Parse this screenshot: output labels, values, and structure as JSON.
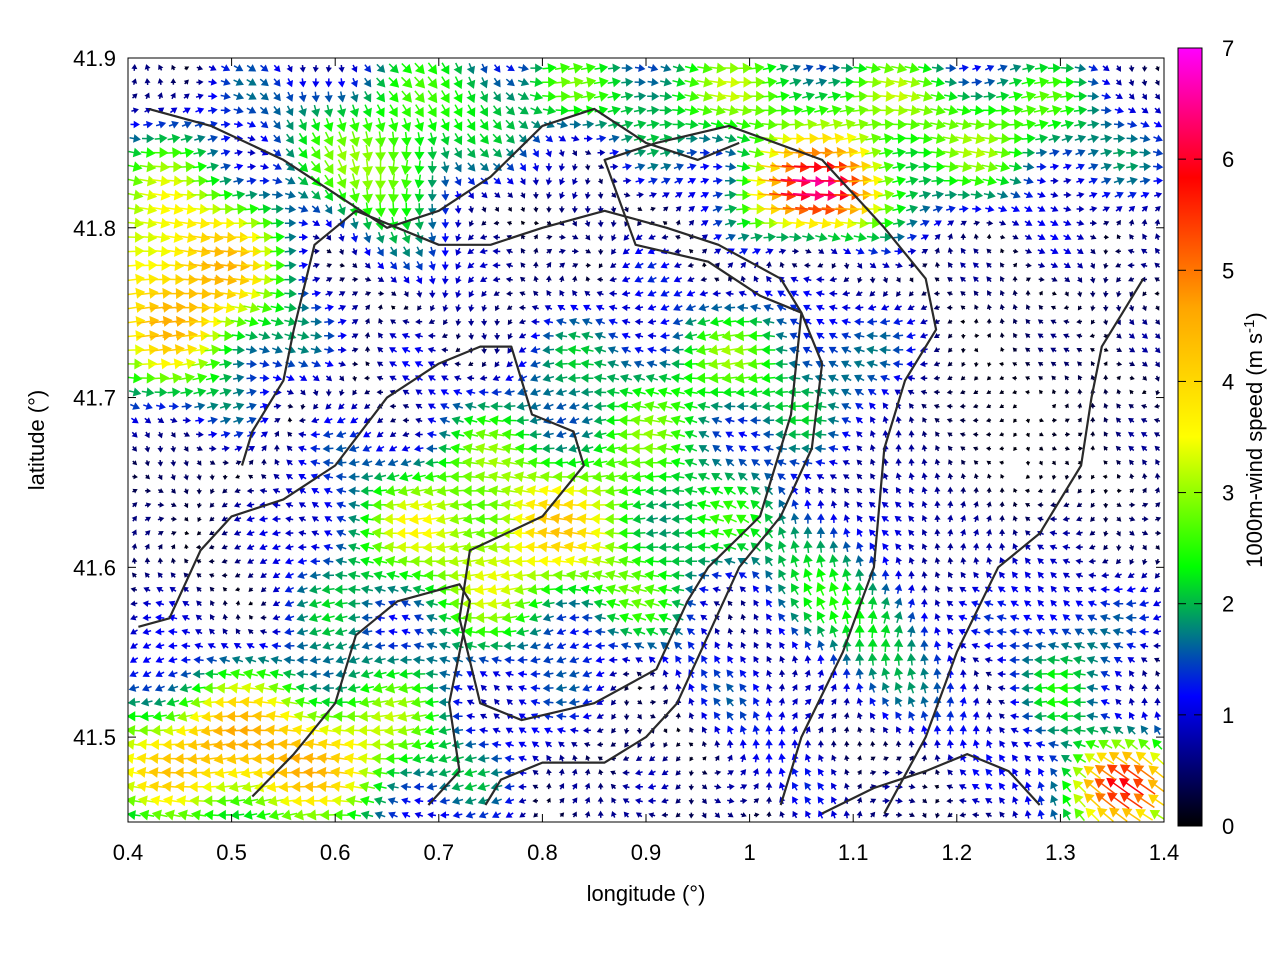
{
  "chart_data": {
    "type": "quiver",
    "title": "",
    "xlabel": "longitude (°)",
    "ylabel": "latitude (°)",
    "xlim": [
      0.4,
      1.4
    ],
    "ylim": [
      41.45,
      41.9
    ],
    "xticks": [
      "0.4",
      "0.5",
      "0.6",
      "0.7",
      "0.8",
      "0.9",
      "1",
      "1.1",
      "1.2",
      "1.3",
      "1.4"
    ],
    "yticks": [
      "41.5",
      "41.6",
      "41.7",
      "41.8",
      "41.9"
    ],
    "colorbar": {
      "label": "1000m-wind speed (m s⁻¹)",
      "label_main": "1000m-wind speed (m s",
      "label_sup": "-1",
      "label_close": ")",
      "range": [
        0,
        7
      ],
      "ticks": [
        "0",
        "1",
        "2",
        "3",
        "4",
        "5",
        "6",
        "7"
      ],
      "stops": [
        "#000000",
        "#0000ff",
        "#00ff00",
        "#ffff00",
        "#ffa500",
        "#ff0000",
        "#ff00ff"
      ]
    },
    "vector_field": {
      "x_spacing_deg": 0.0125,
      "y_spacing_deg": 0.0083,
      "regions": [
        {
          "area": "west (0.40–0.55, 41.72–41.85)",
          "direction": "east",
          "speed": 4.5
        },
        {
          "area": "northwest strip (0.58–0.75, 41.80–41.90)",
          "direction": "south-east",
          "speed": 3.8
        },
        {
          "area": "north (1.00–1.10, 41.80–41.84)",
          "direction": "east",
          "speed": 5.5
        },
        {
          "area": "central band (0.65–0.95, 41.55–41.68)",
          "direction": "west",
          "speed": 3.5
        },
        {
          "area": "south-west (0.40–0.70, 41.46–41.52)",
          "direction": "west",
          "speed": 4.5
        },
        {
          "area": "east calm (1.15–1.35, 41.60–41.75)",
          "direction": "variable",
          "speed": 0.6
        },
        {
          "area": "south-east corner (1.30–1.40, 41.45–41.50)",
          "direction": "north-west",
          "speed": 6.5
        }
      ]
    },
    "contours": [
      [
        [
          0.52,
          41.465
        ],
        [
          0.56,
          41.49
        ],
        [
          0.6,
          41.52
        ],
        [
          0.62,
          41.56
        ],
        [
          0.66,
          41.58
        ],
        [
          0.72,
          41.59
        ],
        [
          0.73,
          41.58
        ],
        [
          0.71,
          41.52
        ],
        [
          0.72,
          41.48
        ],
        [
          0.69,
          41.46
        ]
      ],
      [
        [
          0.41,
          41.565
        ],
        [
          0.44,
          41.57
        ],
        [
          0.47,
          41.61
        ],
        [
          0.5,
          41.63
        ],
        [
          0.55,
          41.64
        ],
        [
          0.6,
          41.66
        ],
        [
          0.65,
          41.7
        ],
        [
          0.7,
          41.72
        ],
        [
          0.74,
          41.73
        ],
        [
          0.77,
          41.73
        ],
        [
          0.79,
          41.69
        ],
        [
          0.83,
          41.68
        ],
        [
          0.84,
          41.66
        ],
        [
          0.8,
          41.63
        ],
        [
          0.73,
          41.61
        ],
        [
          0.72,
          41.57
        ],
        [
          0.74,
          41.52
        ],
        [
          0.78,
          41.51
        ],
        [
          0.85,
          41.52
        ],
        [
          0.91,
          41.54
        ],
        [
          0.94,
          41.58
        ],
        [
          0.96,
          41.6
        ],
        [
          1.01,
          41.63
        ],
        [
          1.04,
          41.69
        ],
        [
          1.05,
          41.75
        ],
        [
          1.03,
          41.77
        ],
        [
          0.97,
          41.79
        ],
        [
          0.92,
          41.8
        ],
        [
          0.86,
          41.81
        ],
        [
          0.8,
          41.8
        ],
        [
          0.75,
          41.79
        ],
        [
          0.7,
          41.79
        ],
        [
          0.66,
          41.8
        ],
        [
          0.62,
          41.81
        ],
        [
          0.6,
          41.8
        ],
        [
          0.58,
          41.79
        ],
        [
          0.56,
          41.74
        ],
        [
          0.55,
          41.71
        ],
        [
          0.52,
          41.68
        ],
        [
          0.51,
          41.66
        ]
      ],
      [
        [
          0.745,
          41.46
        ],
        [
          0.76,
          41.475
        ],
        [
          0.8,
          41.485
        ],
        [
          0.86,
          41.485
        ],
        [
          0.9,
          41.5
        ],
        [
          0.93,
          41.52
        ],
        [
          0.96,
          41.56
        ],
        [
          0.99,
          41.6
        ],
        [
          1.03,
          41.63
        ],
        [
          1.06,
          41.67
        ],
        [
          1.07,
          41.72
        ],
        [
          1.05,
          41.75
        ],
        [
          1.01,
          41.76
        ],
        [
          0.96,
          41.78
        ],
        [
          0.89,
          41.79
        ],
        [
          0.86,
          41.84
        ],
        [
          0.91,
          41.85
        ],
        [
          0.98,
          41.86
        ],
        [
          1.07,
          41.84
        ],
        [
          1.13,
          41.8
        ],
        [
          1.17,
          41.77
        ],
        [
          1.18,
          41.74
        ],
        [
          1.15,
          41.71
        ],
        [
          1.13,
          41.67
        ],
        [
          1.12,
          41.6
        ],
        [
          1.09,
          41.55
        ],
        [
          1.05,
          41.5
        ],
        [
          1.03,
          41.46
        ]
      ],
      [
        [
          0.42,
          41.87
        ],
        [
          0.48,
          41.86
        ],
        [
          0.55,
          41.84
        ],
        [
          0.6,
          41.82
        ],
        [
          0.65,
          41.8
        ],
        [
          0.7,
          41.81
        ],
        [
          0.75,
          41.83
        ],
        [
          0.8,
          41.86
        ],
        [
          0.85,
          41.87
        ],
        [
          0.9,
          41.85
        ],
        [
          0.95,
          41.84
        ],
        [
          0.99,
          41.85
        ]
      ],
      [
        [
          1.07,
          41.455
        ],
        [
          1.12,
          41.47
        ],
        [
          1.17,
          41.48
        ],
        [
          1.21,
          41.49
        ],
        [
          1.25,
          41.48
        ],
        [
          1.28,
          41.46
        ]
      ],
      [
        [
          1.13,
          41.455
        ],
        [
          1.17,
          41.5
        ],
        [
          1.2,
          41.55
        ],
        [
          1.24,
          41.6
        ],
        [
          1.28,
          41.62
        ],
        [
          1.3,
          41.64
        ],
        [
          1.32,
          41.66
        ],
        [
          1.33,
          41.7
        ],
        [
          1.34,
          41.73
        ],
        [
          1.36,
          41.75
        ],
        [
          1.38,
          41.77
        ]
      ]
    ]
  }
}
